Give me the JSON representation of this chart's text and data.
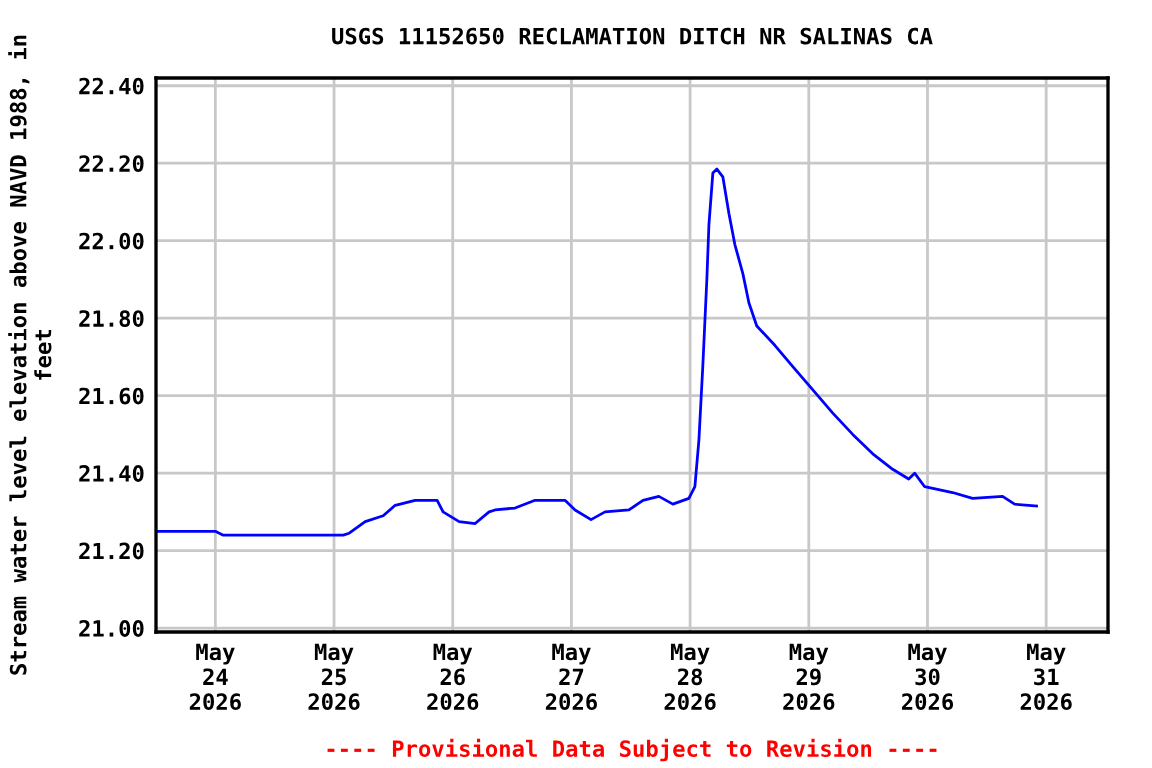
{
  "chart_data": {
    "type": "line",
    "title": "USGS 11152650 RECLAMATION DITCH NR SALINAS CA",
    "ylabel": "Stream water level elevation above NAVD 1988, in feet",
    "x": [
      "2026-05-23T12:00",
      "2026-05-24T00:00",
      "2026-05-24T01:36",
      "2026-05-24T13:44",
      "2026-05-25T01:52",
      "2026-05-25T03:04",
      "2026-05-25T06:18",
      "2026-05-25T09:56",
      "2026-05-25T12:22",
      "2026-05-25T16:24",
      "2026-05-25T20:51",
      "2026-05-25T22:03",
      "2026-05-26T01:18",
      "2026-05-26T04:32",
      "2026-05-26T07:21",
      "2026-05-26T08:34",
      "2026-05-26T12:36",
      "2026-05-26T16:39",
      "2026-05-26T22:42",
      "2026-05-27T00:44",
      "2026-05-27T03:58",
      "2026-05-27T06:48",
      "2026-05-27T11:38",
      "2026-05-27T14:28",
      "2026-05-27T17:41",
      "2026-05-27T20:31",
      "2026-05-27T23:45",
      "2026-05-28T00:58",
      "2026-05-28T01:47",
      "2026-05-28T02:35",
      "2026-05-28T03:23",
      "2026-05-28T03:48",
      "2026-05-28T04:36",
      "2026-05-28T05:25",
      "2026-05-28T06:37",
      "2026-05-28T07:51",
      "2026-05-28T09:03",
      "2026-05-28T10:40",
      "2026-05-28T11:53",
      "2026-05-28T13:29",
      "2026-05-28T17:08",
      "2026-05-28T20:46",
      "2026-05-29T00:49",
      "2026-05-29T04:51",
      "2026-05-29T08:53",
      "2026-05-29T12:56",
      "2026-05-29T16:58",
      "2026-05-29T20:12",
      "2026-05-29T21:24",
      "2026-05-29T23:26",
      "2026-05-30T05:05",
      "2026-05-30T09:07",
      "2026-05-30T15:11",
      "2026-05-30T17:37",
      "2026-05-30T22:03"
    ],
    "series": [
      {
        "color": "#0000ff",
        "values": [
          21.25,
          21.25,
          21.24,
          21.24,
          21.24,
          21.245,
          21.275,
          21.29,
          21.317,
          21.33,
          21.33,
          21.3,
          21.275,
          21.27,
          21.3,
          21.305,
          21.31,
          21.33,
          21.33,
          21.305,
          21.28,
          21.3,
          21.305,
          21.33,
          21.34,
          21.32,
          21.335,
          21.365,
          21.486,
          21.68,
          21.9,
          22.04,
          22.175,
          22.185,
          22.165,
          22.07,
          21.99,
          21.915,
          21.84,
          21.78,
          21.73,
          21.675,
          21.615,
          21.555,
          21.5,
          21.45,
          21.41,
          21.385,
          21.4,
          21.365,
          21.35,
          21.335,
          21.34,
          21.32,
          21.315
        ]
      }
    ],
    "xlim": [
      "2026-05-23T12:00",
      "2026-05-31T12:30"
    ],
    "xticks": [
      {
        "value": "2026-05-24",
        "label": "May\n24\n2026"
      },
      {
        "value": "2026-05-25",
        "label": "May\n25\n2026"
      },
      {
        "value": "2026-05-26",
        "label": "May\n26\n2026"
      },
      {
        "value": "2026-05-27",
        "label": "May\n27\n2026"
      },
      {
        "value": "2026-05-28",
        "label": "May\n28\n2026"
      },
      {
        "value": "2026-05-29",
        "label": "May\n29\n2026"
      },
      {
        "value": "2026-05-30",
        "label": "May\n30\n2026"
      },
      {
        "value": "2026-05-31",
        "label": "May\n31\n2026"
      }
    ],
    "ylim": [
      20.99,
      22.42
    ],
    "yticks": [
      {
        "value": 21.0,
        "label": "21.00"
      },
      {
        "value": 21.2,
        "label": "21.20"
      },
      {
        "value": 21.4,
        "label": "21.40"
      },
      {
        "value": 21.6,
        "label": "21.60"
      },
      {
        "value": 21.8,
        "label": "21.80"
      },
      {
        "value": 22.0,
        "label": "22.00"
      },
      {
        "value": 22.2,
        "label": "22.20"
      },
      {
        "value": 22.4,
        "label": "22.40"
      }
    ],
    "grid": true,
    "annotations": [
      "---- Provisional Data Subject to Revision ----"
    ]
  }
}
